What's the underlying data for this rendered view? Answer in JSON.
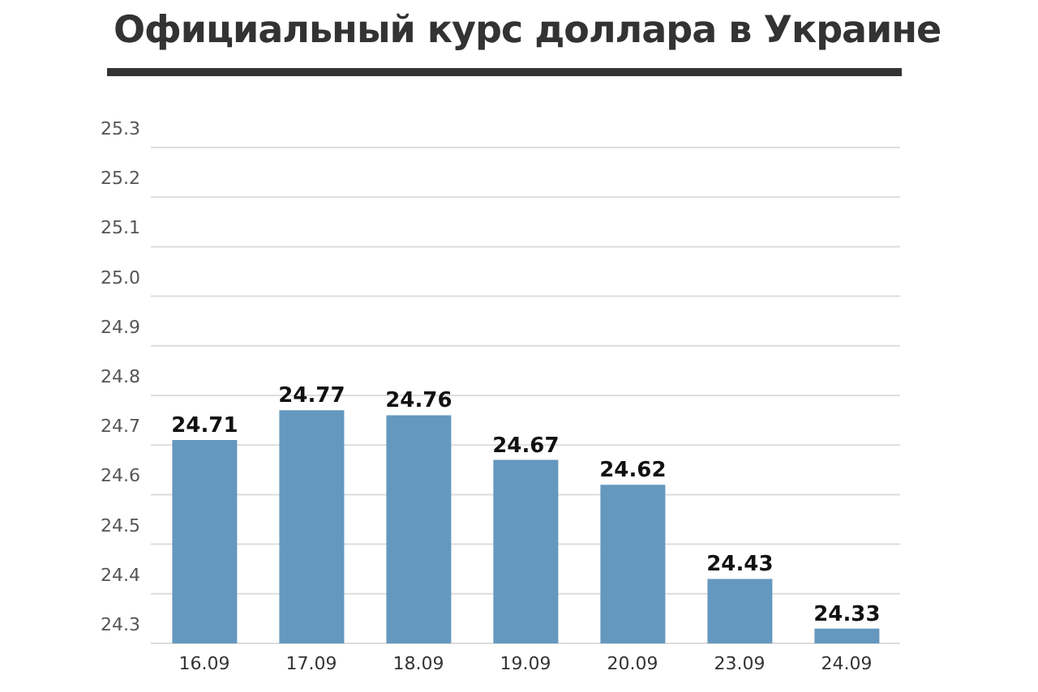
{
  "chart_data": {
    "type": "bar",
    "title": "Официальный курс доллара в Украине",
    "categories": [
      "16.09",
      "17.09",
      "18.09",
      "19.09",
      "20.09",
      "23.09",
      "24.09"
    ],
    "values": [
      24.71,
      24.77,
      24.76,
      24.67,
      24.62,
      24.43,
      24.33
    ],
    "color": "#6598bf",
    "ylim": [
      24.3,
      25.3
    ],
    "yticks": [
      "24.3",
      "24.4",
      "24.5",
      "24.6",
      "24.7",
      "24.8",
      "24.9",
      "25.0",
      "25.1",
      "25.2",
      "25.3"
    ],
    "grid": "y",
    "data_labels": true
  }
}
